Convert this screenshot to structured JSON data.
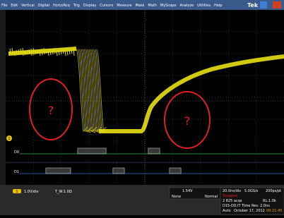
{
  "menu": [
    "File",
    "Edit",
    "Vertical",
    "Digital",
    "Horiz/Acq",
    "Trig",
    "Display",
    "Cursors",
    "Measure",
    "Mask",
    "Math",
    "MyScope",
    "Analyze",
    "Utilities",
    "Help"
  ],
  "logo": "Tek",
  "annotations": [
    "?",
    "?"
  ],
  "channels": {
    "ch1": "1",
    "d0": "D0",
    "d1": "D1"
  },
  "status": {
    "scale": "1.0V/div",
    "threshold": "T_W:1.0Ω",
    "trigger_level": "1.54V",
    "trigger_source": "None",
    "trigger_mode": "Normal",
    "timebase": "20.0ns/div",
    "sample_rate": "5.0GS/s",
    "resolution": "200ps/pt",
    "state": "Stopped",
    "acqs": "2 825 acqs",
    "record": "RL:1.0k",
    "digital": "D15-D0:",
    "time_res": "IT Time Res: 2.0ns",
    "mode": "Auto",
    "date": "October 17, 2012",
    "time": "09:21:45"
  }
}
